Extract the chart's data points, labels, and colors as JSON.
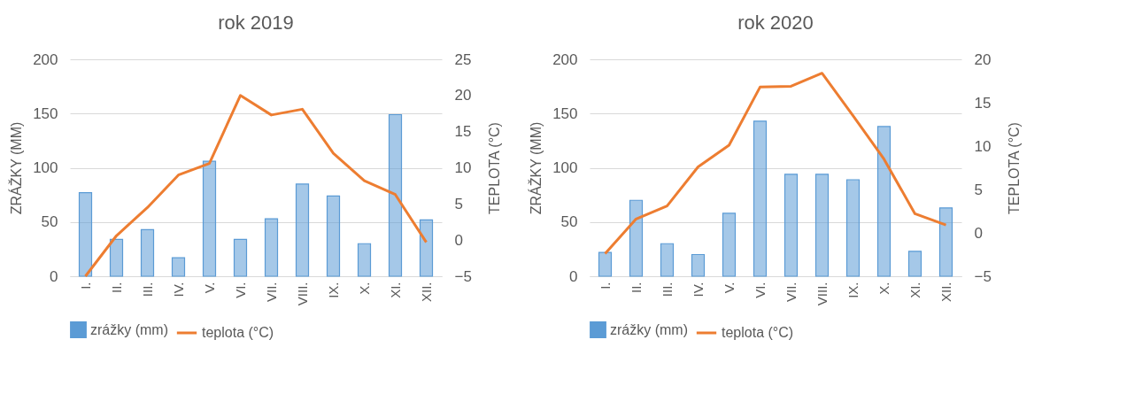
{
  "chart_data": [
    {
      "type": "bar",
      "title": "rok 2019",
      "categories": [
        "I.",
        "II.",
        "III.",
        "IV.",
        "V.",
        "VI.",
        "VII.",
        "VIII.",
        "IX.",
        "X.",
        "XI.",
        "XII."
      ],
      "series": [
        {
          "name": "zrážky (mm)",
          "color": "#5b9bd5",
          "values": [
            77,
            34,
            43,
            17,
            106,
            34,
            53,
            85,
            74,
            30,
            149,
            52
          ]
        },
        {
          "name": "teplota (°C)",
          "type": "line",
          "axis": "y2",
          "color": "#ed7d31",
          "values": [
            -5.0,
            0.6,
            4.5,
            9.0,
            10.6,
            20.0,
            17.3,
            18.1,
            12.0,
            8.2,
            6.3,
            -0.3
          ]
        }
      ],
      "ylabel": "ZRÁŽKY (MM)",
      "y2label": "TEPLOTA (°C)",
      "ylim": [
        0,
        200
      ],
      "yticks": [
        0,
        50,
        100,
        150,
        200
      ],
      "y2lim": [
        -5,
        25
      ],
      "y2ticks": [
        -5,
        0,
        5,
        10,
        15,
        20,
        25
      ],
      "grid": "y",
      "legend": "bottom",
      "line_style": "solid",
      "marker": "none"
    },
    {
      "type": "bar",
      "title": "rok 2020",
      "categories": [
        "I.",
        "II.",
        "III.",
        "IV.",
        "V.",
        "VI.",
        "VII.",
        "VIII.",
        "IX.",
        "X.",
        "XI.",
        "XII."
      ],
      "series": [
        {
          "name": "zrážky (mm)",
          "color": "#5b9bd5",
          "values": [
            22,
            70,
            30,
            20,
            58,
            143,
            94,
            94,
            89,
            138,
            23,
            63
          ]
        },
        {
          "name": "teplota (°C)",
          "type": "line",
          "axis": "y2",
          "color": "#ed7d31",
          "values": [
            -2.4,
            1.6,
            3.1,
            7.6,
            10.1,
            16.8,
            16.9,
            18.4,
            13.5,
            8.5,
            2.2,
            0.9
          ]
        }
      ],
      "ylabel": "ZRÁŽKY (MM)",
      "y2label": "TEPLOTA (°C)",
      "ylim": [
        0,
        200
      ],
      "yticks": [
        0,
        50,
        100,
        150,
        200
      ],
      "y2lim": [
        -5,
        20
      ],
      "y2ticks": [
        -5,
        0,
        5,
        10,
        15,
        20
      ],
      "grid": "y",
      "legend": "bottom",
      "line_style": "solid",
      "marker": "none"
    }
  ]
}
